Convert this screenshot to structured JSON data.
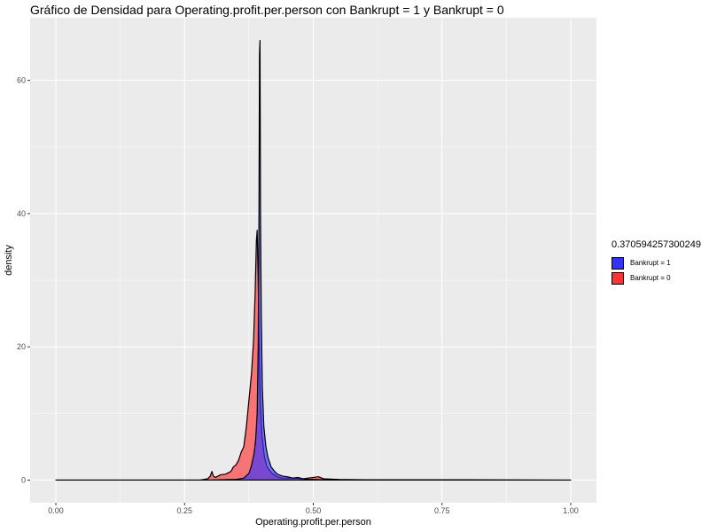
{
  "chart_data": {
    "type": "area",
    "title": "Gráfico de Densidad para Operating.profit.per.person con Bankrupt = 1 y Bankrupt = 0",
    "xlabel": "Operating.profit.per.person",
    "ylabel": "density",
    "xlim": [
      -0.05,
      1.05
    ],
    "ylim": [
      -3.4,
      69.4
    ],
    "x_ticks": [
      0.0,
      0.25,
      0.5,
      0.75,
      1.0
    ],
    "x_tick_labels": [
      "0.00",
      "0.25",
      "0.50",
      "0.75",
      "1.00"
    ],
    "y_ticks": [
      0,
      20,
      40,
      60
    ],
    "y_tick_labels": [
      "0",
      "20",
      "40",
      "60"
    ],
    "grid": true,
    "legend_title": "0.370594257300249",
    "legend_position": "right",
    "series": [
      {
        "name": "Bankrupt = 1",
        "color": "#3333ff",
        "points": [
          [
            0,
            0
          ],
          [
            0.3,
            0
          ],
          [
            0.35,
            0.1
          ],
          [
            0.365,
            0.3
          ],
          [
            0.375,
            1.0
          ],
          [
            0.38,
            2.2
          ],
          [
            0.385,
            4.0
          ],
          [
            0.388,
            6.0
          ],
          [
            0.391,
            10.0
          ],
          [
            0.393,
            20.0
          ],
          [
            0.3945,
            40.0
          ],
          [
            0.3955,
            64.0
          ],
          [
            0.3965,
            66.0
          ],
          [
            0.3975,
            40.0
          ],
          [
            0.399,
            25.0
          ],
          [
            0.401,
            14.0
          ],
          [
            0.404,
            8.0
          ],
          [
            0.408,
            5.0
          ],
          [
            0.412,
            3.4
          ],
          [
            0.418,
            2.0
          ],
          [
            0.425,
            1.3
          ],
          [
            0.43,
            0.9
          ],
          [
            0.44,
            0.6
          ],
          [
            0.45,
            0.5
          ],
          [
            0.46,
            0.3
          ],
          [
            0.47,
            0.4
          ],
          [
            0.48,
            0.2
          ],
          [
            0.49,
            0.1
          ],
          [
            0.5,
            0.1
          ],
          [
            0.55,
            0
          ],
          [
            1.0,
            0
          ]
        ]
      },
      {
        "name": "Bankrupt = 0",
        "color": "#ff3333",
        "points": [
          [
            0,
            0
          ],
          [
            0.28,
            0
          ],
          [
            0.295,
            0.2
          ],
          [
            0.3,
            0.6
          ],
          [
            0.303,
            1.3
          ],
          [
            0.306,
            0.6
          ],
          [
            0.31,
            0.4
          ],
          [
            0.32,
            0.8
          ],
          [
            0.33,
            0.9
          ],
          [
            0.34,
            1.3
          ],
          [
            0.345,
            2.0
          ],
          [
            0.35,
            2.3
          ],
          [
            0.355,
            3.0
          ],
          [
            0.36,
            4.2
          ],
          [
            0.365,
            5.0
          ],
          [
            0.37,
            8.0
          ],
          [
            0.375,
            12.0
          ],
          [
            0.38,
            16.0
          ],
          [
            0.384,
            21.0
          ],
          [
            0.387,
            28.0
          ],
          [
            0.3895,
            36.0
          ],
          [
            0.391,
            37.5
          ],
          [
            0.393,
            30.0
          ],
          [
            0.395,
            20.0
          ],
          [
            0.397,
            12.0
          ],
          [
            0.4,
            7.0
          ],
          [
            0.405,
            3.5
          ],
          [
            0.41,
            2.0
          ],
          [
            0.42,
            1.0
          ],
          [
            0.43,
            0.5
          ],
          [
            0.44,
            0.3
          ],
          [
            0.46,
            0.3
          ],
          [
            0.48,
            0.2
          ],
          [
            0.5,
            0.4
          ],
          [
            0.51,
            0.5
          ],
          [
            0.52,
            0.2
          ],
          [
            0.55,
            0.1
          ],
          [
            0.6,
            0.05
          ],
          [
            0.7,
            0.05
          ],
          [
            0.8,
            0.05
          ],
          [
            1.0,
            0
          ]
        ]
      }
    ]
  }
}
